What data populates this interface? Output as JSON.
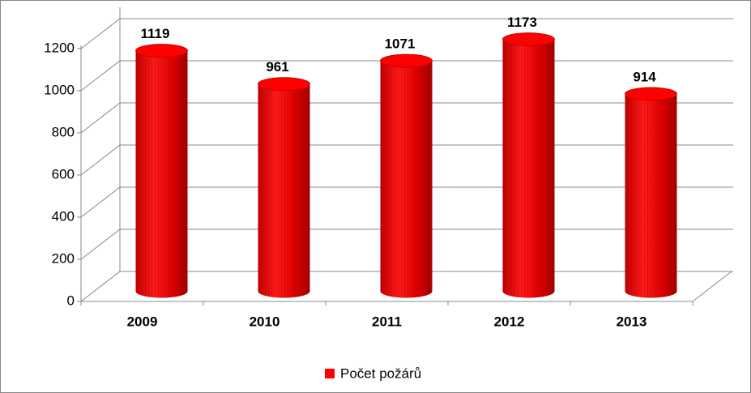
{
  "chart_data": {
    "type": "bar",
    "categories": [
      "2009",
      "2010",
      "2011",
      "2012",
      "2013"
    ],
    "series": [
      {
        "name": "Počet požárů",
        "color": "#ff0000",
        "values": [
          1119,
          961,
          1071,
          1173,
          914
        ]
      }
    ],
    "ylim": [
      0,
      1200
    ],
    "yticks": [
      0,
      200,
      400,
      600,
      800,
      1000,
      1200
    ],
    "grid": true,
    "legend": "bottom"
  }
}
